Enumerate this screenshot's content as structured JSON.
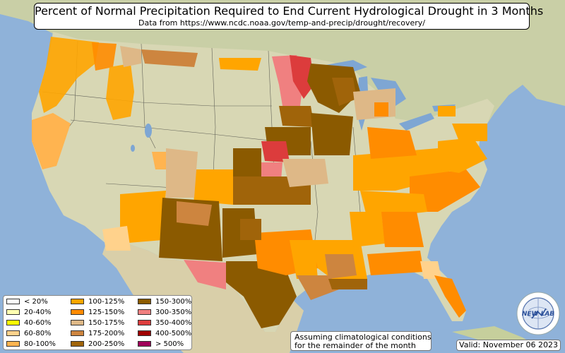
{
  "title": "Percent of Normal Precipitation Required to End Current Hydrological Drought in 3 Months",
  "subtitle": "Data from https://www.ncdc.noaa.gov/temp-and-precip/drought/recovery/",
  "legend": {
    "items": [
      {
        "label": "< 20%",
        "color": "#ffffff"
      },
      {
        "label": "20-40%",
        "color": "#ffffb2"
      },
      {
        "label": "40-60%",
        "color": "#ffff00"
      },
      {
        "label": "60-80%",
        "color": "#ffd28c"
      },
      {
        "label": "80-100%",
        "color": "#ffb450"
      },
      {
        "label": "100-125%",
        "color": "#ffa500"
      },
      {
        "label": "125-150%",
        "color": "#ff8c00"
      },
      {
        "label": "150-175%",
        "color": "#deb887"
      },
      {
        "label": "175-200%",
        "color": "#cd853f"
      },
      {
        "label": "200-250%",
        "color": "#a0640a"
      },
      {
        "label": "150-300%",
        "color": "#8b5a00"
      },
      {
        "label": "300-350%",
        "color": "#f08080"
      },
      {
        "label": "350-400%",
        "color": "#dc3c3c"
      },
      {
        "label": "400-500%",
        "color": "#a00000"
      },
      {
        "label": "> 500%",
        "color": "#a0005a"
      }
    ]
  },
  "assumption_note": {
    "line1": "Assuming climatological conditions",
    "line2": "for the remainder of the month"
  },
  "valid_text": "Valid: November 06 2023",
  "logo": {
    "text": "NEW LAB",
    "icon": "globe-icon"
  },
  "map_colors": {
    "ocean": "#8fb2d9",
    "land": "#d8d7b4",
    "land_dark": "#b9c49a",
    "canada": "#c9cfa6",
    "mexico": "#d9cfa9",
    "lake": "#7ea6d3"
  }
}
